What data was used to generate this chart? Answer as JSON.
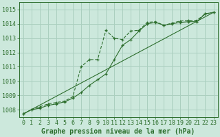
{
  "background_color": "#cce8dc",
  "plot_bg_color": "#cce8dc",
  "grid_color": "#aacfbf",
  "line_color": "#2d6e2d",
  "xlabel": "Graphe pression niveau de la mer (hPa)",
  "ylim": [
    1007.5,
    1015.5
  ],
  "xlim": [
    -0.5,
    23.5
  ],
  "yticks": [
    1008,
    1009,
    1010,
    1011,
    1012,
    1013,
    1014,
    1015
  ],
  "xticks": [
    0,
    1,
    2,
    3,
    4,
    5,
    6,
    7,
    8,
    9,
    10,
    11,
    12,
    13,
    14,
    15,
    16,
    17,
    18,
    19,
    20,
    21,
    22,
    23
  ],
  "series1_x": [
    0,
    1,
    2,
    3,
    4,
    5,
    6,
    7,
    8,
    9,
    10,
    11,
    12,
    13,
    14,
    15,
    16,
    17,
    18,
    19,
    20,
    21,
    22,
    23
  ],
  "series1_y": [
    1007.7,
    1008.0,
    1008.2,
    1008.4,
    1008.5,
    1008.6,
    1008.9,
    1011.0,
    1011.5,
    1011.5,
    1013.55,
    1013.0,
    1012.9,
    1013.5,
    1013.55,
    1014.1,
    1014.15,
    1013.9,
    1014.05,
    1014.2,
    1014.25,
    1014.25,
    1014.7,
    1014.8
  ],
  "series2_x": [
    0,
    1,
    2,
    3,
    4,
    5,
    6,
    7,
    8,
    9,
    10,
    11,
    12,
    13,
    14,
    15,
    16,
    17,
    18,
    19,
    20,
    21,
    22,
    23
  ],
  "series2_y": [
    1007.7,
    1008.0,
    1008.1,
    1008.3,
    1008.4,
    1008.55,
    1008.8,
    1009.2,
    1009.7,
    1010.1,
    1010.5,
    1011.5,
    1012.5,
    1012.9,
    1013.5,
    1014.0,
    1014.1,
    1013.9,
    1014.0,
    1014.1,
    1014.15,
    1014.15,
    1014.7,
    1014.8
  ],
  "series3_x": [
    0,
    23
  ],
  "series3_y": [
    1007.7,
    1014.8
  ],
  "xlabel_fontsize": 7,
  "tick_fontsize": 6,
  "xlabel_color": "#2d6e2d",
  "tick_color": "#2d6e2d"
}
